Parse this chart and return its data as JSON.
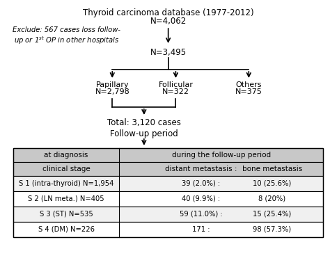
{
  "title_line1": "Thyroid carcinoma database (1977-2012)",
  "title_line2": "N=4,062",
  "exclude_text": "Exclude: 567 cases loss follow-\nup or 1ˢᵗ OP in other hospitals",
  "n3495": "N=3,495",
  "papillary_label": "Papillary",
  "papillary_n": "N=2,798",
  "follicular_label": "Follicular",
  "follicular_n": "N=322",
  "others_label": "Others",
  "others_n": "N=375",
  "total_text": "Total: 3,120 cases",
  "followup_text": "Follow-up period",
  "table_header_col1": "at diagnosis",
  "table_header_col2": "during the follow-up period",
  "table_subheader_col1": "clinical stage",
  "table_subheader_col2a": "distant metastasis :",
  "table_subheader_col2b": "bone metastasis",
  "rows": [
    [
      "S 1 (intra-thyroid) N=1,954",
      "39 (2.0%) :",
      "10 (25.6%)"
    ],
    [
      "S 2 (LN meta.) N=405",
      "40 (9.9%) :",
      "8 (20%)"
    ],
    [
      "S 3 (ST) N=535",
      "59 (11.0%) :",
      "15 (25.4%)"
    ],
    [
      "S 4 (DM) N=226",
      "171 :",
      "98 (57.3%)"
    ]
  ],
  "bg_color": "#ffffff",
  "header_bg": "#c8c8c8",
  "cell_bg": "#f0f0f0",
  "border_color": "#000000",
  "text_color": "#000000"
}
